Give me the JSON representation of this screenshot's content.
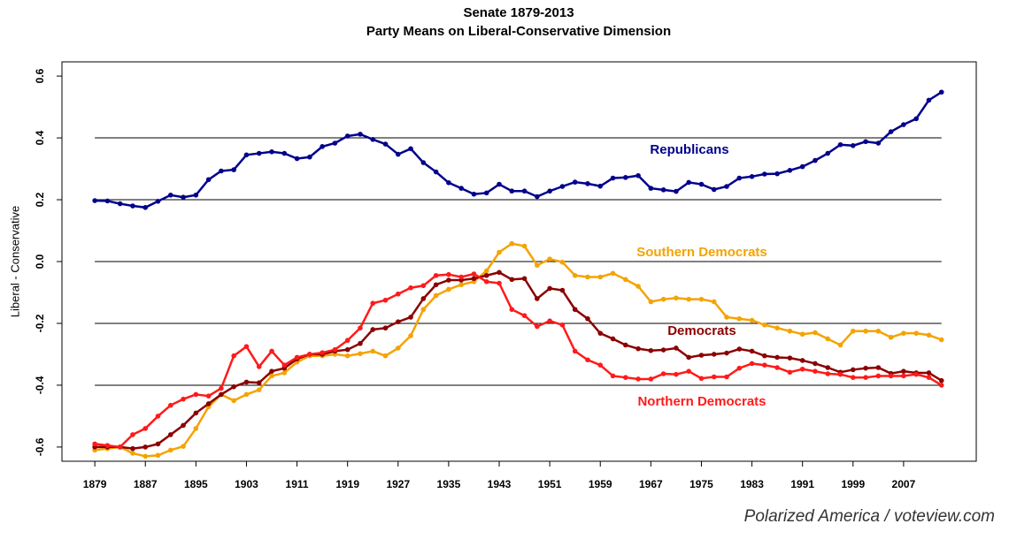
{
  "chart_data": {
    "type": "line",
    "title": "Senate 1879-2013",
    "subtitle": "Party Means on Liberal-Conservative Dimension",
    "ylabel": "Liberal - Conservative",
    "source": "Polarized America / voteview.com",
    "x": [
      1879,
      1881,
      1883,
      1885,
      1887,
      1889,
      1891,
      1893,
      1895,
      1897,
      1899,
      1901,
      1903,
      1905,
      1907,
      1909,
      1911,
      1913,
      1915,
      1917,
      1919,
      1921,
      1923,
      1925,
      1927,
      1929,
      1931,
      1933,
      1935,
      1937,
      1939,
      1941,
      1943,
      1945,
      1947,
      1949,
      1951,
      1953,
      1955,
      1957,
      1959,
      1961,
      1963,
      1965,
      1967,
      1969,
      1971,
      1973,
      1975,
      1977,
      1979,
      1981,
      1983,
      1985,
      1987,
      1989,
      1991,
      1993,
      1995,
      1997,
      1999,
      2001,
      2003,
      2005,
      2007,
      2009,
      2011,
      2013
    ],
    "series": [
      {
        "name": "Republicans",
        "color": "#00008b",
        "values": [
          0.197,
          0.196,
          0.187,
          0.18,
          0.175,
          0.195,
          0.215,
          0.208,
          0.215,
          0.265,
          0.293,
          0.297,
          0.345,
          0.35,
          0.355,
          0.35,
          0.333,
          0.338,
          0.372,
          0.383,
          0.406,
          0.412,
          0.395,
          0.38,
          0.347,
          0.365,
          0.32,
          0.29,
          0.255,
          0.237,
          0.218,
          0.222,
          0.25,
          0.228,
          0.228,
          0.21,
          0.228,
          0.243,
          0.257,
          0.252,
          0.244,
          0.27,
          0.272,
          0.278,
          0.237,
          0.232,
          0.227,
          0.256,
          0.25,
          0.233,
          0.243,
          0.27,
          0.275,
          0.283,
          0.284,
          0.295,
          0.307,
          0.327,
          0.35,
          0.378,
          0.375,
          0.388,
          0.383,
          0.42,
          0.443,
          0.462,
          0.522,
          0.548
        ]
      },
      {
        "name": "Southern Democrats",
        "color": "#f5a300",
        "values": [
          -0.61,
          -0.605,
          -0.6,
          -0.62,
          -0.63,
          -0.627,
          -0.61,
          -0.598,
          -0.54,
          -0.47,
          -0.43,
          -0.45,
          -0.43,
          -0.415,
          -0.37,
          -0.36,
          -0.325,
          -0.305,
          -0.305,
          -0.3,
          -0.305,
          -0.298,
          -0.29,
          -0.305,
          -0.28,
          -0.24,
          -0.155,
          -0.11,
          -0.09,
          -0.075,
          -0.065,
          -0.03,
          0.03,
          0.058,
          0.05,
          -0.012,
          0.008,
          -0.002,
          -0.045,
          -0.05,
          -0.05,
          -0.038,
          -0.058,
          -0.08,
          -0.13,
          -0.122,
          -0.118,
          -0.122,
          -0.122,
          -0.13,
          -0.18,
          -0.185,
          -0.19,
          -0.205,
          -0.215,
          -0.225,
          -0.235,
          -0.23,
          -0.25,
          -0.27,
          -0.225,
          -0.225,
          -0.225,
          -0.245,
          -0.232,
          -0.232,
          -0.238,
          -0.253
        ]
      },
      {
        "name": "Democrats",
        "color": "#8b0000",
        "values": [
          -0.6,
          -0.6,
          -0.6,
          -0.605,
          -0.6,
          -0.59,
          -0.56,
          -0.53,
          -0.49,
          -0.46,
          -0.43,
          -0.405,
          -0.39,
          -0.392,
          -0.355,
          -0.345,
          -0.315,
          -0.3,
          -0.3,
          -0.29,
          -0.285,
          -0.265,
          -0.22,
          -0.215,
          -0.195,
          -0.18,
          -0.12,
          -0.075,
          -0.06,
          -0.06,
          -0.055,
          -0.045,
          -0.035,
          -0.058,
          -0.055,
          -0.12,
          -0.087,
          -0.093,
          -0.155,
          -0.185,
          -0.232,
          -0.25,
          -0.27,
          -0.282,
          -0.288,
          -0.286,
          -0.28,
          -0.31,
          -0.303,
          -0.3,
          -0.296,
          -0.283,
          -0.29,
          -0.305,
          -0.31,
          -0.312,
          -0.32,
          -0.33,
          -0.343,
          -0.358,
          -0.35,
          -0.345,
          -0.343,
          -0.362,
          -0.355,
          -0.36,
          -0.36,
          -0.385
        ]
      },
      {
        "name": "Northern Democrats",
        "color": "#ff1a1a",
        "values": [
          -0.59,
          -0.595,
          -0.6,
          -0.56,
          -0.54,
          -0.5,
          -0.465,
          -0.445,
          -0.43,
          -0.435,
          -0.41,
          -0.305,
          -0.275,
          -0.34,
          -0.29,
          -0.335,
          -0.31,
          -0.3,
          -0.295,
          -0.285,
          -0.255,
          -0.215,
          -0.135,
          -0.125,
          -0.105,
          -0.085,
          -0.078,
          -0.045,
          -0.042,
          -0.05,
          -0.04,
          -0.065,
          -0.07,
          -0.155,
          -0.175,
          -0.21,
          -0.192,
          -0.205,
          -0.29,
          -0.318,
          -0.335,
          -0.37,
          -0.375,
          -0.38,
          -0.38,
          -0.363,
          -0.365,
          -0.355,
          -0.378,
          -0.373,
          -0.373,
          -0.345,
          -0.33,
          -0.335,
          -0.343,
          -0.358,
          -0.348,
          -0.355,
          -0.363,
          -0.365,
          -0.375,
          -0.375,
          -0.37,
          -0.37,
          -0.37,
          -0.365,
          -0.375,
          -0.4
        ]
      }
    ],
    "xlim": [
      1873.8,
      2018.5
    ],
    "xticks": [
      1879,
      1887,
      1895,
      1903,
      1911,
      1919,
      1927,
      1935,
      1943,
      1951,
      1959,
      1967,
      1975,
      1983,
      1991,
      1999,
      2007
    ],
    "ylim": [
      -0.646,
      0.646
    ],
    "yticks": [
      0.6,
      0.4,
      0.2,
      {
        "value": 0,
        "label": "0.0"
      },
      -0.2,
      -0.4,
      -0.6
    ],
    "hlines": [
      0.4,
      0.2,
      0,
      -0.2,
      -0.4
    ]
  }
}
